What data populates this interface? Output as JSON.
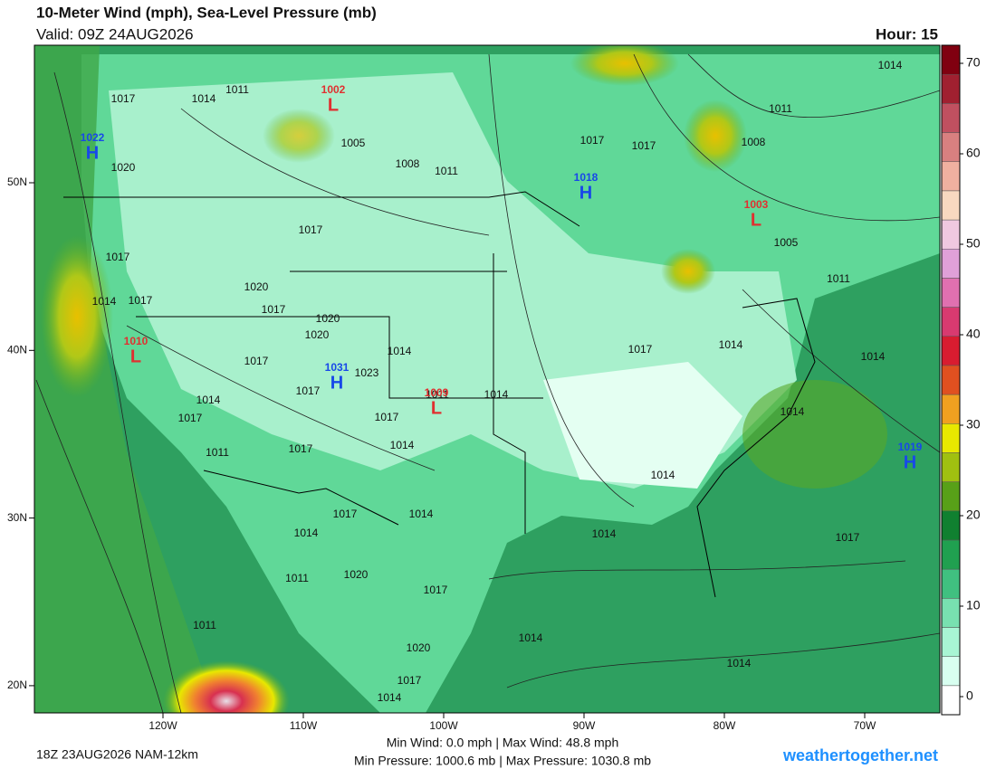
{
  "header": {
    "title": "10-Meter Wind (mph), Sea-Level Pressure (mb)",
    "valid": "Valid: 09Z 24AUG2026",
    "hour": "Hour: 15"
  },
  "map": {
    "lon_ticks": [
      {
        "value": -120,
        "label": "120W"
      },
      {
        "value": -110,
        "label": "110W"
      },
      {
        "value": -100,
        "label": "100W"
      },
      {
        "value": -90,
        "label": "90W"
      },
      {
        "value": -80,
        "label": "80W"
      },
      {
        "value": -70,
        "label": "70W"
      }
    ],
    "lat_ticks": [
      {
        "value": 50,
        "label": "50N"
      },
      {
        "value": 40,
        "label": "40N"
      },
      {
        "value": 30,
        "label": "30N"
      },
      {
        "value": 20,
        "label": "20N"
      }
    ],
    "pressure_centers": [
      {
        "type": "H",
        "value": 1022
      },
      {
        "type": "L",
        "value": 1002
      },
      {
        "type": "H",
        "value": 1018
      },
      {
        "type": "L",
        "value": 1003
      },
      {
        "type": "L",
        "value": 1010
      },
      {
        "type": "H",
        "value": 1031
      },
      {
        "type": "L",
        "value": 1009
      },
      {
        "type": "H",
        "value": 1019
      }
    ],
    "isobar_labels": [
      1017,
      1014,
      1011,
      1005,
      1008,
      1011,
      1020,
      1017,
      1017,
      1014,
      1017,
      1020,
      1017,
      1020,
      1020,
      1014,
      1017,
      1023,
      1017,
      1014,
      1017,
      1017,
      1011,
      1014,
      1014,
      1011,
      1017,
      1017,
      1014,
      1014,
      1020,
      1017,
      1011,
      1011,
      1014,
      1020,
      1017,
      1014,
      1017,
      1017,
      1011,
      1008,
      1014,
      1005,
      1011,
      1017,
      1014,
      1014,
      1014,
      1014,
      1014,
      1017,
      1014
    ]
  },
  "colorbar": {
    "range": [
      -2,
      72
    ],
    "ticks": [
      0,
      10,
      20,
      30,
      40,
      50,
      60,
      70
    ],
    "colors": [
      "#ffffff",
      "#d8fff0",
      "#a8f5d4",
      "#78e0b0",
      "#40c080",
      "#20a050",
      "#108030",
      "#58a018",
      "#a0c010",
      "#e8e800",
      "#f0a020",
      "#e05020",
      "#d81c30",
      "#d83a70",
      "#e070b0",
      "#e0a0d8",
      "#f0c8e0",
      "#f8d8c0",
      "#f0b0a0",
      "#d88080",
      "#c05060",
      "#a02030",
      "#800010"
    ]
  },
  "footer": {
    "run": "18Z 23AUG2026 NAM-12km",
    "wind": "Min Wind:  0.0 mph | Max Wind:  48.8 mph",
    "pressure": "Min Pressure: 1000.6 mb | Max Pressure: 1030.8 mb",
    "site": "weathertogether.net"
  }
}
